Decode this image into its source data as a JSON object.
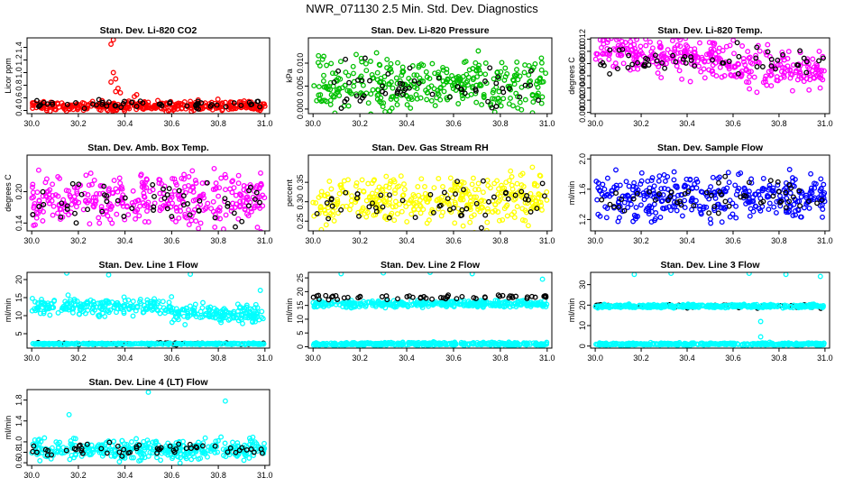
{
  "page": {
    "title": "NWR_071130  2.5 Min. Std. Dev. Diagnostics"
  },
  "colors": {
    "red": "#ff0000",
    "green": "#00c000",
    "magenta": "#ff00ff",
    "yellow": "#ffff00",
    "blue": "#0000ff",
    "cyan": "#00ffff",
    "black": "#000000"
  },
  "chart_data": [
    {
      "type": "scatter",
      "title": "Stan. Dev. Li-820 CO2",
      "ylabel": "Licor ppm",
      "xlabel": "",
      "xlim": [
        29.98,
        31.02
      ],
      "ylim": [
        0.35,
        1.55
      ],
      "xticks": [
        "30.0",
        "30.2",
        "30.4",
        "30.6",
        "30.8",
        "31.0"
      ],
      "yticks": [
        "0.4",
        "0.6",
        "0.8",
        "1.0",
        "1.2",
        "1.4"
      ],
      "series": [
        {
          "name": "red",
          "color": "#ff0000",
          "center": 0.47,
          "spread": 0.04
        },
        {
          "name": "black",
          "color": "#000000",
          "center": 0.5,
          "spread": 0.03
        }
      ],
      "outliers": [
        {
          "x": 30.35,
          "y": 1.52
        },
        {
          "x": 30.34,
          "y": 1.45
        },
        {
          "x": 30.35,
          "y": 1.0
        },
        {
          "x": 30.36,
          "y": 0.9
        },
        {
          "x": 30.34,
          "y": 0.85
        },
        {
          "x": 30.37,
          "y": 0.75
        },
        {
          "x": 30.38,
          "y": 0.68
        },
        {
          "x": 30.36,
          "y": 0.7
        },
        {
          "x": 30.45,
          "y": 0.65
        },
        {
          "x": 30.44,
          "y": 0.62
        }
      ]
    },
    {
      "type": "scatter",
      "title": "Stan. Dev. Li-820 Pressure",
      "ylabel": "kPa",
      "xlabel": "",
      "xlim": [
        29.98,
        31.02
      ],
      "ylim": [
        -0.001,
        0.0155
      ],
      "xticks": [
        "30.0",
        "30.2",
        "30.4",
        "30.6",
        "30.8",
        "31.0"
      ],
      "yticks": [
        "0.000",
        "0.005",
        "0.010"
      ],
      "series": [
        {
          "name": "green",
          "color": "#00c000",
          "center": 0.005,
          "spread": 0.003
        },
        {
          "name": "black",
          "color": "#000000",
          "center": 0.005,
          "spread": 0.0025
        }
      ],
      "outliers": []
    },
    {
      "type": "scatter",
      "title": "Stan. Dev. Li-820 Temp.",
      "ylabel": "degrees C",
      "xlabel": "",
      "xlim": [
        29.98,
        31.02
      ],
      "ylim": [
        -0.0002,
        0.0122
      ],
      "xticks": [
        "30.0",
        "30.2",
        "30.4",
        "30.6",
        "30.8",
        "31.0"
      ],
      "yticks": [
        "0.000",
        "0.002",
        "0.004",
        "0.006",
        "0.008",
        "0.010",
        "0.012"
      ],
      "series": [
        {
          "name": "magenta",
          "color": "#ff00ff",
          "center": 0.0085,
          "spread": 0.0015
        },
        {
          "name": "black",
          "color": "#000000",
          "center": 0.0085,
          "spread": 0.001
        }
      ],
      "outliers": []
    },
    {
      "type": "scatter",
      "title": "Stan. Dev. Amb. Box Temp.",
      "ylabel": "degrees C",
      "xlabel": "",
      "xlim": [
        29.98,
        31.02
      ],
      "ylim": [
        0.125,
        0.27
      ],
      "xticks": [
        "30.0",
        "30.2",
        "30.4",
        "30.6",
        "30.8",
        "31.0"
      ],
      "yticks": [
        "0.14",
        "0.20"
      ],
      "series": [
        {
          "name": "magenta",
          "color": "#ff00ff",
          "center": 0.185,
          "spread": 0.025
        },
        {
          "name": "black",
          "color": "#000000",
          "center": 0.18,
          "spread": 0.02
        }
      ],
      "outliers": []
    },
    {
      "type": "scatter",
      "title": "Stan. Dev. Gas Stream RH",
      "ylabel": "percent",
      "xlabel": "",
      "xlim": [
        29.98,
        31.02
      ],
      "ylim": [
        0.225,
        0.42
      ],
      "xticks": [
        "30.0",
        "30.2",
        "30.4",
        "30.6",
        "30.8",
        "31.0"
      ],
      "yticks": [
        "0.25",
        "0.30",
        "0.35"
      ],
      "series": [
        {
          "name": "yellow",
          "color": "#ffff00",
          "center": 0.305,
          "spread": 0.03
        },
        {
          "name": "black",
          "color": "#000000",
          "center": 0.3,
          "spread": 0.025
        }
      ],
      "outliers": []
    },
    {
      "type": "scatter",
      "title": "Stan. Dev. Sample Flow",
      "ylabel": "ml/min",
      "xlabel": "",
      "xlim": [
        29.98,
        31.02
      ],
      "ylim": [
        1.05,
        2.05
      ],
      "xticks": [
        "30.0",
        "30.2",
        "30.4",
        "30.6",
        "30.8",
        "31.0"
      ],
      "yticks": [
        "1.2",
        "1.6",
        "2.0"
      ],
      "series": [
        {
          "name": "blue",
          "color": "#0000ff",
          "center": 1.5,
          "spread": 0.15
        },
        {
          "name": "black",
          "color": "#000000",
          "center": 1.5,
          "spread": 0.12
        }
      ],
      "outliers": []
    },
    {
      "type": "scatter",
      "title": "Stan. Dev. Line 1 Flow",
      "ylabel": "ml/min",
      "xlabel": "",
      "xlim": [
        29.98,
        31.02
      ],
      "ylim": [
        1,
        22
      ],
      "xticks": [
        "30.0",
        "30.2",
        "30.4",
        "30.6",
        "30.8",
        "31.0"
      ],
      "yticks": [
        "5",
        "10",
        "15",
        "20"
      ],
      "series": [
        {
          "name": "cyan",
          "color": "#00ffff",
          "center": 12.5,
          "spread": 1.2
        },
        {
          "name": "black",
          "color": "#000000",
          "center": 2.2,
          "spread": 0.15
        },
        {
          "name": "cyan-low",
          "color": "#00ffff",
          "center": 2.2,
          "spread": 0.1
        }
      ],
      "outliers": [
        {
          "x": 30.15,
          "y": 21.8
        },
        {
          "x": 30.33,
          "y": 21.3
        },
        {
          "x": 30.68,
          "y": 21.5
        },
        {
          "x": 30.98,
          "y": 17
        }
      ]
    },
    {
      "type": "scatter",
      "title": "Stan. Dev. Line 2 Flow",
      "ylabel": "ml/min",
      "xlabel": "",
      "xlim": [
        29.98,
        31.02
      ],
      "ylim": [
        -0.5,
        27
      ],
      "xticks": [
        "30.0",
        "30.2",
        "30.4",
        "30.6",
        "30.8",
        "31.0"
      ],
      "yticks": [
        "0",
        "5",
        "10",
        "15",
        "20",
        "25"
      ],
      "series": [
        {
          "name": "cyan",
          "color": "#00ffff",
          "center": 15.5,
          "spread": 0.6
        },
        {
          "name": "black",
          "color": "#000000",
          "center": 18,
          "spread": 0.5
        },
        {
          "name": "cyan-low",
          "color": "#00ffff",
          "center": 1.0,
          "spread": 0.3
        }
      ],
      "outliers": [
        {
          "x": 30.12,
          "y": 26.5
        },
        {
          "x": 30.3,
          "y": 26.8
        },
        {
          "x": 30.5,
          "y": 27
        },
        {
          "x": 30.68,
          "y": 26.5
        },
        {
          "x": 30.98,
          "y": 24.5
        }
      ]
    },
    {
      "type": "scatter",
      "title": "Stan. Dev. Line 3 Flow",
      "ylabel": "ml/min",
      "xlabel": "",
      "xlim": [
        29.98,
        31.02
      ],
      "ylim": [
        -1,
        36
      ],
      "xticks": [
        "30.0",
        "30.2",
        "30.4",
        "30.6",
        "30.8",
        "31.0"
      ],
      "yticks": [
        "0",
        "10",
        "20",
        "30"
      ],
      "series": [
        {
          "name": "cyan",
          "color": "#00ffff",
          "center": 1.0,
          "spread": 0.3
        },
        {
          "name": "black",
          "color": "#000000",
          "center": 19.5,
          "spread": 0.5
        },
        {
          "name": "cyan-high",
          "color": "#00ffff",
          "center": 19.5,
          "spread": 0.4
        }
      ],
      "outliers": [
        {
          "x": 30.17,
          "y": 35
        },
        {
          "x": 30.33,
          "y": 35.5
        },
        {
          "x": 30.67,
          "y": 35.5
        },
        {
          "x": 30.83,
          "y": 35
        },
        {
          "x": 30.98,
          "y": 34
        },
        {
          "x": 30.72,
          "y": 12
        },
        {
          "x": 30.72,
          "y": 4.5
        }
      ]
    },
    {
      "type": "scatter",
      "title": "Stan. Dev. Line 4 (LT) Flow",
      "ylabel": "ml/min",
      "xlabel": "",
      "xlim": [
        29.98,
        31.02
      ],
      "ylim": [
        0.55,
        2.0
      ],
      "xticks": [
        "30.0",
        "30.2",
        "30.4",
        "30.6",
        "30.8",
        "31.0"
      ],
      "yticks": [
        "0.6",
        "0.8",
        "1.0",
        "1.4",
        "1.8"
      ],
      "series": [
        {
          "name": "cyan",
          "color": "#00ffff",
          "center": 0.85,
          "spread": 0.1
        },
        {
          "name": "black",
          "color": "#000000",
          "center": 0.85,
          "spread": 0.07
        }
      ],
      "outliers": [
        {
          "x": 30.16,
          "y": 1.52
        },
        {
          "x": 30.5,
          "y": 1.95
        },
        {
          "x": 30.83,
          "y": 1.78
        }
      ]
    }
  ]
}
